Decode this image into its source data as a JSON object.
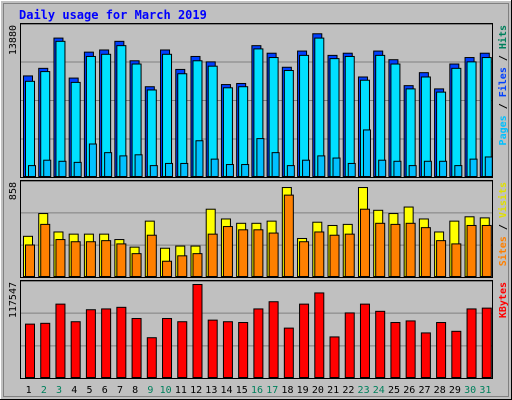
{
  "colors": {
    "background": "#c0c0c0",
    "plot_bg": "#c0c0c0",
    "grid": "#808080",
    "title": "#0000ff",
    "hits": "#0040ff",
    "files": "#00e0ff",
    "pages": "#00c0ff",
    "visits": "#ffff00",
    "sites": "#ff8000",
    "kbytes": "#ff0000",
    "day_normal": "#000000",
    "day_weekend": "#00805c"
  },
  "chart_data": {
    "type": "bar",
    "title": "Daily usage for March 2019",
    "days": [
      "1",
      "2",
      "3",
      "4",
      "5",
      "6",
      "7",
      "8",
      "9",
      "10",
      "11",
      "12",
      "13",
      "14",
      "15",
      "16",
      "17",
      "18",
      "19",
      "20",
      "21",
      "22",
      "23",
      "24",
      "25",
      "26",
      "27",
      "28",
      "29",
      "30",
      "31"
    ],
    "weekend_days": [
      "2",
      "3",
      "9",
      "10",
      "16",
      "17",
      "23",
      "24",
      "30",
      "31"
    ],
    "panels": [
      {
        "ymax_label": "13880",
        "ymax": 13880,
        "legend": [
          "Pages",
          "Files",
          "Hits"
        ],
        "series": [
          {
            "name": "Hits",
            "values": [
              9400,
              10100,
              12900,
              9200,
              11600,
              11800,
              12600,
              10800,
              8400,
              11800,
              10000,
              11200,
              10700,
              8600,
              8700,
              12200,
              11500,
              10200,
              11700,
              13300,
              11300,
              11500,
              9300,
              11700,
              10900,
              8500,
              9700,
              8200,
              10500,
              11100,
              11500
            ]
          },
          {
            "name": "Files",
            "values": [
              8900,
              9800,
              12600,
              8800,
              11200,
              11400,
              12200,
              10500,
              8100,
              11400,
              9600,
              10800,
              10300,
              8300,
              8400,
              11900,
              11100,
              9900,
              11300,
              12900,
              11000,
              11200,
              9000,
              11300,
              10500,
              8200,
              9300,
              7900,
              10100,
              10700,
              11100
            ]
          },
          {
            "name": "Pages",
            "values": [
              1100,
              1600,
              1500,
              1400,
              3100,
              2300,
              2000,
              2100,
              1100,
              1300,
              1300,
              3400,
              1700,
              1200,
              1200,
              3600,
              2300,
              1100,
              1600,
              2000,
              1800,
              1300,
              4400,
              1600,
              1500,
              1100,
              1500,
              1500,
              1100,
              1700,
              1900
            ]
          }
        ]
      },
      {
        "ymax_label": "858",
        "ymax": 858,
        "legend": [
          "Sites",
          "Visits"
        ],
        "series": [
          {
            "name": "Visits",
            "values": [
              380,
              590,
              420,
              400,
              400,
              400,
              350,
              280,
              520,
              270,
              290,
              290,
              630,
              540,
              500,
              500,
              520,
              830,
              360,
              510,
              480,
              490,
              830,
              620,
              590,
              650,
              540,
              420,
              520,
              560,
              550
            ]
          },
          {
            "name": "Sites",
            "values": [
              300,
              490,
              350,
              330,
              330,
              340,
              310,
              220,
              390,
              150,
              200,
              220,
              400,
              470,
              440,
              440,
              410,
              760,
              330,
              420,
              390,
              400,
              630,
              500,
              490,
              500,
              460,
              340,
              310,
              480,
              480
            ]
          }
        ]
      },
      {
        "ymax_label": "117547",
        "ymax": 117547,
        "legend": [
          "KBytes"
        ],
        "series": [
          {
            "name": "KBytes",
            "values": [
              68000,
              69000,
              93000,
              71000,
              86000,
              87000,
              89000,
              75000,
              51000,
              75000,
              71000,
              117547,
              73000,
              71000,
              70000,
              87000,
              96000,
              63000,
              93000,
              107000,
              52000,
              82000,
              93000,
              84000,
              70000,
              72000,
              57000,
              70000,
              59000,
              87000,
              88000
            ]
          }
        ]
      }
    ]
  }
}
